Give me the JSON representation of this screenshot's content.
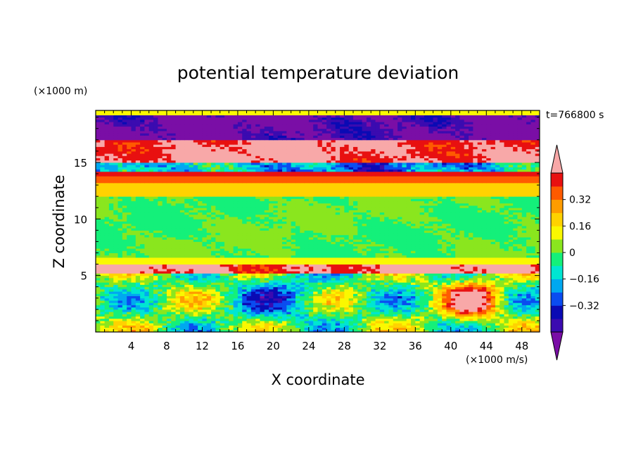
{
  "chart_data": {
    "type": "heatmap",
    "title": "potential temperature deviation",
    "xlabel": "X coordinate",
    "ylabel": "Z coordinate",
    "x_unit": "(×1000 m/s)",
    "y_unit": "(×1000 m)",
    "time_label": "t=766800 s",
    "xlim": [
      0,
      50
    ],
    "ylim": [
      0,
      19.6
    ],
    "x_ticks": [
      4,
      8,
      12,
      16,
      20,
      24,
      28,
      32,
      36,
      40,
      44,
      48
    ],
    "y_ticks": [
      5,
      10,
      15
    ],
    "colorbar": {
      "levels": [
        -0.48,
        -0.4,
        -0.32,
        -0.24,
        -0.16,
        -0.08,
        0,
        0.08,
        0.16,
        0.24,
        0.32,
        0.4,
        0.48
      ],
      "colors": [
        "#7a0ea6",
        "#3b0bb0",
        "#0a0ab4",
        "#0a4cf0",
        "#00a8f0",
        "#00e6d2",
        "#14f07a",
        "#8ae61e",
        "#faf800",
        "#ffd200",
        "#ff9c00",
        "#ff5a00",
        "#e81010",
        "#f8a8a8"
      ],
      "labels": [
        {
          "value": 0.32,
          "text": "0.32"
        },
        {
          "value": 0.16,
          "text": "0.16"
        },
        {
          "value": 0,
          "text": "0"
        },
        {
          "value": -0.16,
          "text": "−0.16"
        },
        {
          "value": -0.32,
          "text": "−0.32"
        }
      ],
      "extend": "both"
    },
    "bands": [
      {
        "z": [
          19.2,
          19.6
        ],
        "value": 0.12
      },
      {
        "z": [
          17.0,
          19.2
        ],
        "value": -0.5,
        "mix": 0.5
      },
      {
        "z": [
          15.0,
          17.0
        ],
        "value": 0.5,
        "mix": 0.4
      },
      {
        "z": [
          14.2,
          15.0
        ],
        "value": -0.2,
        "mix": 0.8
      },
      {
        "z": [
          13.8,
          14.2
        ],
        "value": 0.42
      },
      {
        "z": [
          13.2,
          13.8
        ],
        "value": 0.35
      },
      {
        "z": [
          12.0,
          13.2
        ],
        "value": 0.2
      },
      {
        "z": [
          6.6,
          12.0
        ],
        "value": 0.0
      },
      {
        "z": [
          6.1,
          6.6
        ],
        "value": 0.12
      },
      {
        "z": [
          5.3,
          6.1
        ],
        "value": 0.5,
        "mix": 0.45
      },
      {
        "z": [
          0.0,
          5.3
        ],
        "value": -0.1,
        "mix": 1.0
      }
    ]
  }
}
